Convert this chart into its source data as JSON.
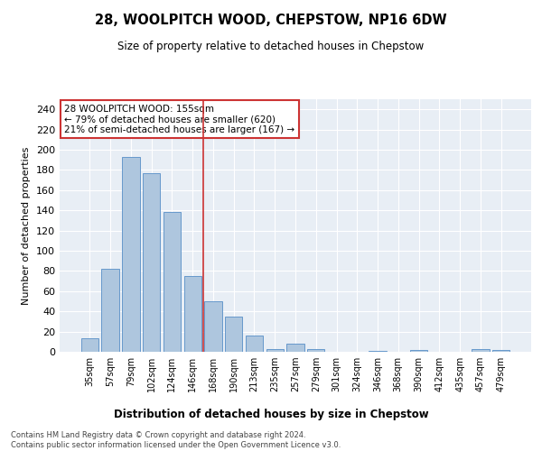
{
  "title": "28, WOOLPITCH WOOD, CHEPSTOW, NP16 6DW",
  "subtitle": "Size of property relative to detached houses in Chepstow",
  "xlabel": "Distribution of detached houses by size in Chepstow",
  "ylabel": "Number of detached properties",
  "categories": [
    "35sqm",
    "57sqm",
    "79sqm",
    "102sqm",
    "124sqm",
    "146sqm",
    "168sqm",
    "190sqm",
    "213sqm",
    "235sqm",
    "257sqm",
    "279sqm",
    "301sqm",
    "324sqm",
    "346sqm",
    "368sqm",
    "390sqm",
    "412sqm",
    "435sqm",
    "457sqm",
    "479sqm"
  ],
  "values": [
    13,
    82,
    193,
    177,
    138,
    75,
    50,
    35,
    16,
    3,
    8,
    3,
    0,
    0,
    1,
    0,
    2,
    0,
    0,
    3,
    2
  ],
  "bar_color": "#aec6de",
  "bar_edge_color": "#6699cc",
  "bar_width": 0.85,
  "vline_x": 5.5,
  "vline_color": "#cc3333",
  "annotation_text": "28 WOOLPITCH WOOD: 155sqm\n← 79% of detached houses are smaller (620)\n21% of semi-detached houses are larger (167) →",
  "annotation_box_color": "#cc3333",
  "ylim": [
    0,
    250
  ],
  "yticks": [
    0,
    20,
    40,
    60,
    80,
    100,
    120,
    140,
    160,
    180,
    200,
    220,
    240
  ],
  "background_color": "#e8eef5",
  "footer_line1": "Contains HM Land Registry data © Crown copyright and database right 2024.",
  "footer_line2": "Contains public sector information licensed under the Open Government Licence v3.0."
}
